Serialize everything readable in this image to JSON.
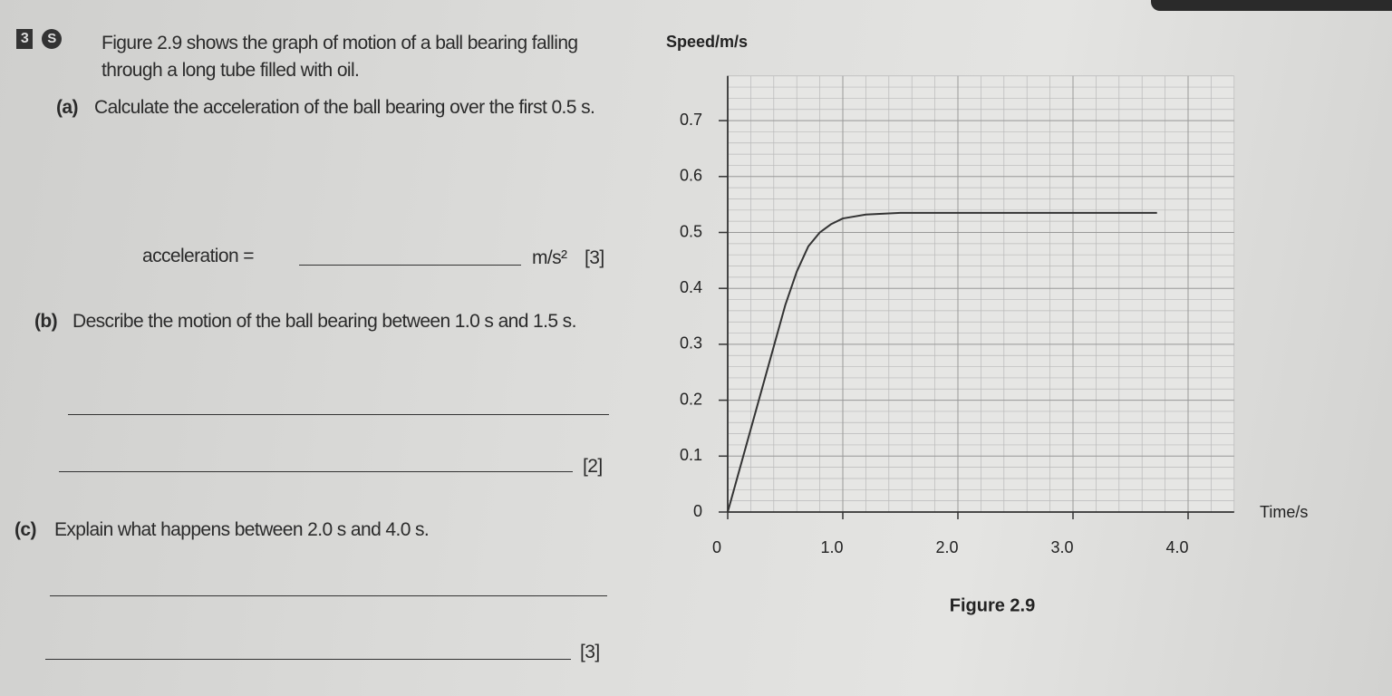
{
  "question": {
    "number": "3",
    "marker": "S",
    "intro": "Figure 2.9 shows the graph of motion of a ball bearing falling through a long tube filled with oil.",
    "parts": [
      {
        "label": "(a)",
        "text": "Calculate the acceleration of the ball bearing over the first 0.5 s.",
        "answer_label": "acceleration =",
        "unit": "m/s²",
        "marks": "[3]"
      },
      {
        "label": "(b)",
        "text": "Describe the motion of the ball bearing between 1.0 s and 1.5 s.",
        "marks": "[2]"
      },
      {
        "label": "(c)",
        "text": "Explain what happens between 2.0 s and 4.0 s.",
        "marks": "[3]"
      }
    ]
  },
  "chart_data": {
    "type": "line",
    "caption": "Figure 2.9",
    "y_label": "Speed/m/s",
    "x_label": "Time/s",
    "x": [
      0,
      0.5,
      0.6,
      0.7,
      0.8,
      0.9,
      1.0,
      1.2,
      1.5,
      3.73
    ],
    "series": [
      {
        "color": "#333333",
        "values": [
          0,
          0.37,
          0.43,
          0.475,
          0.5,
          0.515,
          0.525,
          0.532,
          0.535,
          0.535
        ]
      }
    ],
    "xlim": [
      0,
      4.4
    ],
    "ylim": [
      0,
      0.78
    ],
    "xticks": [
      0,
      {
        "value": 1,
        "label": "1.0"
      },
      {
        "value": 2,
        "label": "2.0"
      },
      {
        "value": 3,
        "label": "3.0"
      },
      {
        "value": 4,
        "label": "4.0"
      }
    ],
    "yticks": [
      0,
      0.1,
      0.2,
      0.3,
      0.4,
      0.5,
      0.6,
      0.7
    ],
    "grid": true
  }
}
